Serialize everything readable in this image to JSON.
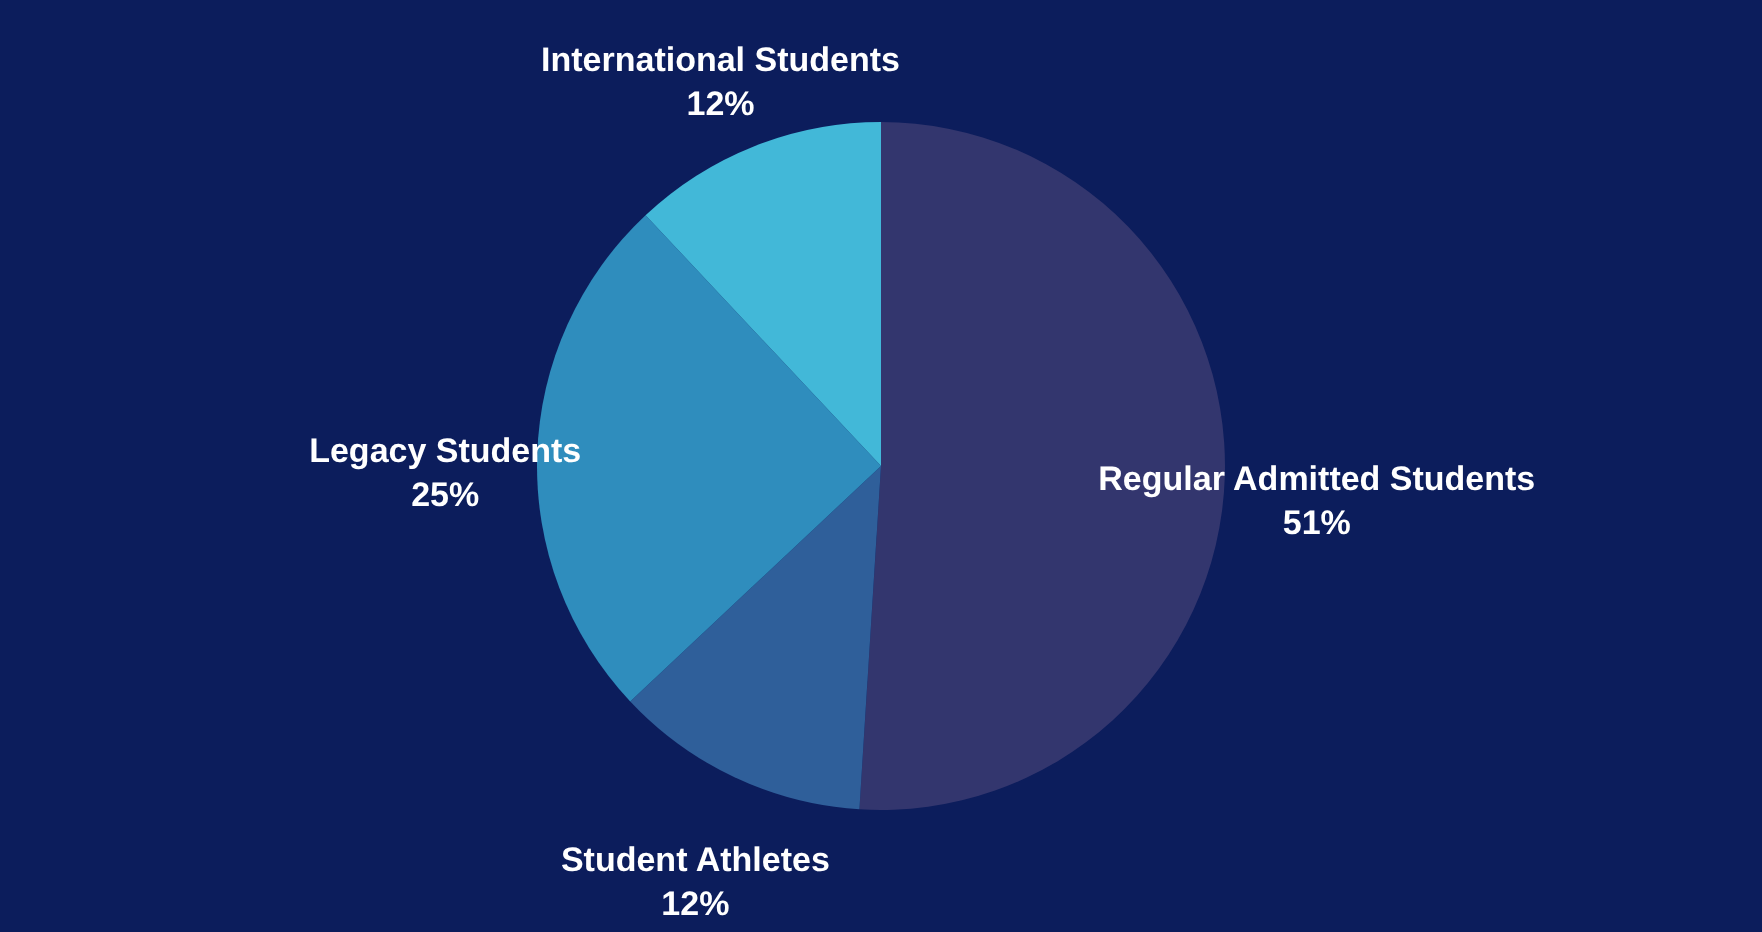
{
  "chart_data": {
    "type": "pie",
    "categories": [
      "Regular Admitted Students",
      "Student Athletes",
      "Legacy Students",
      "International Students"
    ],
    "values": [
      51,
      12,
      25,
      12
    ],
    "colors": [
      "#33366e",
      "#2f5f9a",
      "#2f8dbd",
      "#42b8d8"
    ],
    "value_labels": [
      "51%",
      "12%",
      "25%",
      "12%"
    ]
  }
}
